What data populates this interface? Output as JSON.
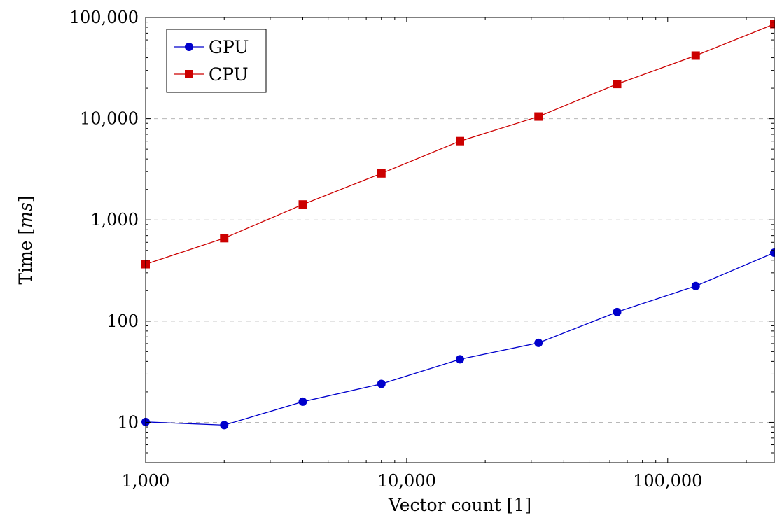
{
  "chart_data": {
    "type": "line",
    "title": "",
    "xlabel": "Vector count [1]",
    "ylabel_text": "Time [",
    "ylabel_unit": "ms",
    "ylabel_close": "]",
    "x_scale": "log",
    "y_scale": "log",
    "xlim": [
      1000,
      256000
    ],
    "ylim": [
      4,
      100000
    ],
    "grid": "horizontal-dashed-major",
    "legend_position": "top-left",
    "x_ticks": [
      {
        "value": 1000,
        "label": "1,000"
      },
      {
        "value": 10000,
        "label": "10,000"
      },
      {
        "value": 100000,
        "label": "100,000"
      }
    ],
    "y_ticks": [
      {
        "value": 10,
        "label": "10"
      },
      {
        "value": 100,
        "label": "100"
      },
      {
        "value": 1000,
        "label": "1,000"
      },
      {
        "value": 10000,
        "label": "10,000"
      },
      {
        "value": 100000,
        "label": "100,000"
      }
    ],
    "series": [
      {
        "name": "GPU",
        "color": "#0000cc",
        "marker": "circle",
        "x": [
          1000,
          2000,
          4000,
          8000,
          16000,
          32000,
          64000,
          128000,
          256000
        ],
        "values": [
          10.1,
          9.4,
          16,
          24,
          42,
          61,
          123,
          222,
          475
        ]
      },
      {
        "name": "CPU",
        "color": "#cc0000",
        "marker": "square",
        "x": [
          1000,
          2000,
          4000,
          8000,
          16000,
          32000,
          64000,
          128000,
          256000
        ],
        "values": [
          365,
          660,
          1420,
          2880,
          6000,
          10500,
          22000,
          42000,
          86000
        ]
      }
    ]
  }
}
